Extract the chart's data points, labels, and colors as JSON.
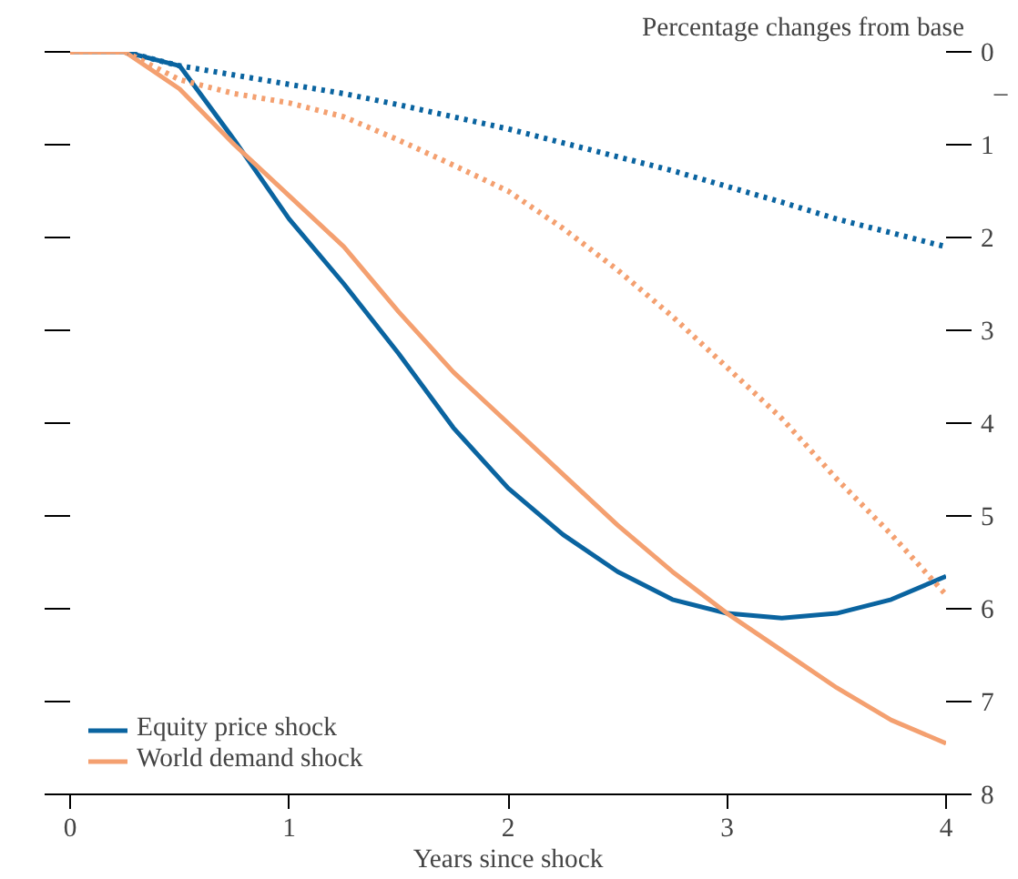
{
  "chart_data": {
    "type": "line",
    "xlabel": "Years since shock",
    "ylabel": "Percentage changes from base",
    "x": [
      0,
      0.25,
      0.5,
      0.75,
      1,
      1.25,
      1.5,
      1.75,
      2,
      2.25,
      2.5,
      2.75,
      3,
      3.25,
      3.5,
      3.75,
      4
    ],
    "series": [
      {
        "name": "Equity price shock",
        "color": "#0a64a0",
        "line_style": "solid",
        "values": [
          0,
          0,
          0.15,
          0.95,
          1.8,
          2.5,
          3.25,
          4.05,
          4.7,
          5.2,
          5.6,
          5.9,
          6.05,
          6.1,
          6.05,
          5.9,
          5.65
        ]
      },
      {
        "name": "World demand shock",
        "color": "#f4a070",
        "line_style": "solid",
        "values": [
          0,
          0,
          0.4,
          1.0,
          1.55,
          2.1,
          2.8,
          3.45,
          4.0,
          4.55,
          5.1,
          5.6,
          6.05,
          6.45,
          6.85,
          7.2,
          7.45
        ]
      },
      {
        "color": "#0a64a0",
        "line_style": "dotted",
        "values": [
          0,
          0,
          0.15,
          0.25,
          0.35,
          0.45,
          0.57,
          0.7,
          0.83,
          0.98,
          1.13,
          1.28,
          1.45,
          1.62,
          1.8,
          1.95,
          2.1
        ]
      },
      {
        "color": "#f4a070",
        "line_style": "dotted",
        "values": [
          0,
          0,
          0.3,
          0.45,
          0.55,
          0.7,
          0.95,
          1.22,
          1.5,
          1.9,
          2.35,
          2.85,
          3.4,
          3.95,
          4.6,
          5.2,
          5.85
        ]
      }
    ],
    "annotations": [
      "–"
    ],
    "xlim": [
      0,
      4
    ],
    "xticks": [
      0,
      1,
      2,
      3,
      4
    ],
    "ylim": [
      8,
      0
    ],
    "yticks": [
      0,
      1,
      2,
      3,
      4,
      5,
      6,
      7,
      8
    ],
    "grid": false,
    "legend": "bottom left",
    "marker": "none"
  }
}
